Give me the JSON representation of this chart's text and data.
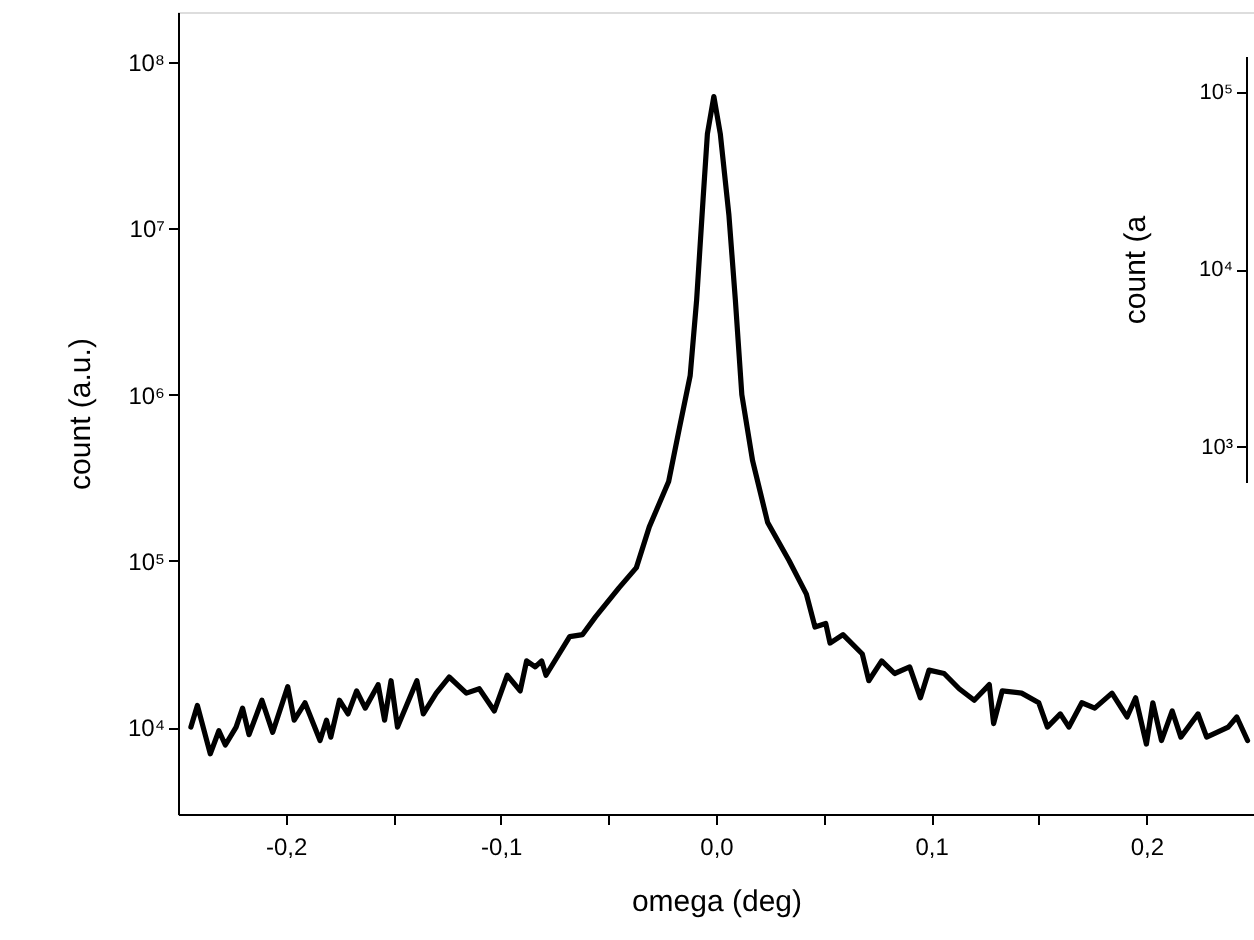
{
  "chart_data": [
    {
      "type": "line",
      "xlabel": "omega (deg)",
      "ylabel": "count (a.u.)",
      "log": "y",
      "grid": false,
      "marker": "none",
      "line_style": "solid",
      "xlim": [
        -0.25,
        0.25
      ],
      "ylim": [
        3000,
        200000000
      ],
      "xticks": [
        {
          "value": -0.2,
          "label": "-0,2"
        },
        {
          "value": -0.15,
          "label": null
        },
        {
          "value": -0.1,
          "label": "-0,1"
        },
        {
          "value": -0.05,
          "label": null
        },
        {
          "value": 0,
          "label": "0,0"
        },
        {
          "value": 0.05,
          "label": null
        },
        {
          "value": 0.1,
          "label": "0,1"
        },
        {
          "value": 0.15,
          "label": null
        },
        {
          "value": 0.2,
          "label": "0,2"
        }
      ],
      "yticks": [
        {
          "value": 10000,
          "label": "10⁴"
        },
        {
          "value": 100000,
          "label": "10⁵"
        },
        {
          "value": 1000000,
          "label": "10⁶"
        },
        {
          "value": 10000000,
          "label": "10⁷"
        },
        {
          "value": 100000000,
          "label": "10⁸"
        }
      ],
      "x": [
        -0.244,
        -0.241,
        -0.235,
        -0.231,
        -0.228,
        -0.223,
        -0.22,
        -0.217,
        -0.211,
        -0.206,
        -0.199,
        -0.196,
        -0.191,
        -0.184,
        -0.181,
        -0.179,
        -0.175,
        -0.171,
        -0.167,
        -0.163,
        -0.157,
        -0.154,
        -0.151,
        -0.148,
        -0.139,
        -0.136,
        -0.13,
        -0.124,
        -0.116,
        -0.11,
        -0.103,
        -0.097,
        -0.091,
        -0.088,
        -0.084,
        -0.081,
        -0.079,
        -0.068,
        -0.062,
        -0.056,
        -0.045,
        -0.037,
        -0.031,
        -0.022,
        -0.017,
        -0.012,
        -0.009,
        -0.006,
        -0.004,
        -0.001,
        0.002,
        0.006,
        0.009,
        0.012,
        0.017,
        0.024,
        0.034,
        0.042,
        0.046,
        0.051,
        0.053,
        0.059,
        0.068,
        0.071,
        0.077,
        0.083,
        0.09,
        0.095,
        0.099,
        0.106,
        0.113,
        0.12,
        0.127,
        0.129,
        0.133,
        0.142,
        0.15,
        0.154,
        0.16,
        0.164,
        0.17,
        0.176,
        0.184,
        0.191,
        0.195,
        0.2,
        0.203,
        0.207,
        0.212,
        0.216,
        0.224,
        0.228,
        0.238,
        0.242,
        0.247
      ],
      "series": [
        {
          "color": "#000000",
          "values": [
            10000,
            13500,
            6900,
            9500,
            7800,
            10000,
            13000,
            9000,
            14500,
            9300,
            17500,
            11000,
            14000,
            8300,
            11000,
            8700,
            14500,
            12000,
            16500,
            13000,
            18000,
            11000,
            19000,
            10000,
            19000,
            12000,
            16000,
            20000,
            16000,
            17000,
            12500,
            20500,
            16500,
            25000,
            23000,
            25000,
            20500,
            35000,
            36000,
            46000,
            69000,
            91000,
            160000,
            300000,
            630000,
            1300000,
            3700000,
            15000000,
            37000000,
            62000000,
            37000000,
            12000000,
            3700000,
            1000000,
            400000,
            170000,
            100000,
            63000,
            40000,
            42000,
            32000,
            36000,
            27500,
            19000,
            25000,
            21000,
            23000,
            15000,
            22000,
            21000,
            17000,
            14500,
            18000,
            10500,
            16500,
            16000,
            14000,
            10000,
            12000,
            10000,
            14000,
            13000,
            16000,
            11500,
            15000,
            7900,
            14000,
            8300,
            12500,
            8700,
            12000,
            8700,
            10000,
            11500,
            8300
          ]
        }
      ]
    },
    {
      "type": "other",
      "ylabel": "count (a",
      "annotations": [
        "10⁵",
        "10⁴",
        "10³"
      ]
    }
  ]
}
